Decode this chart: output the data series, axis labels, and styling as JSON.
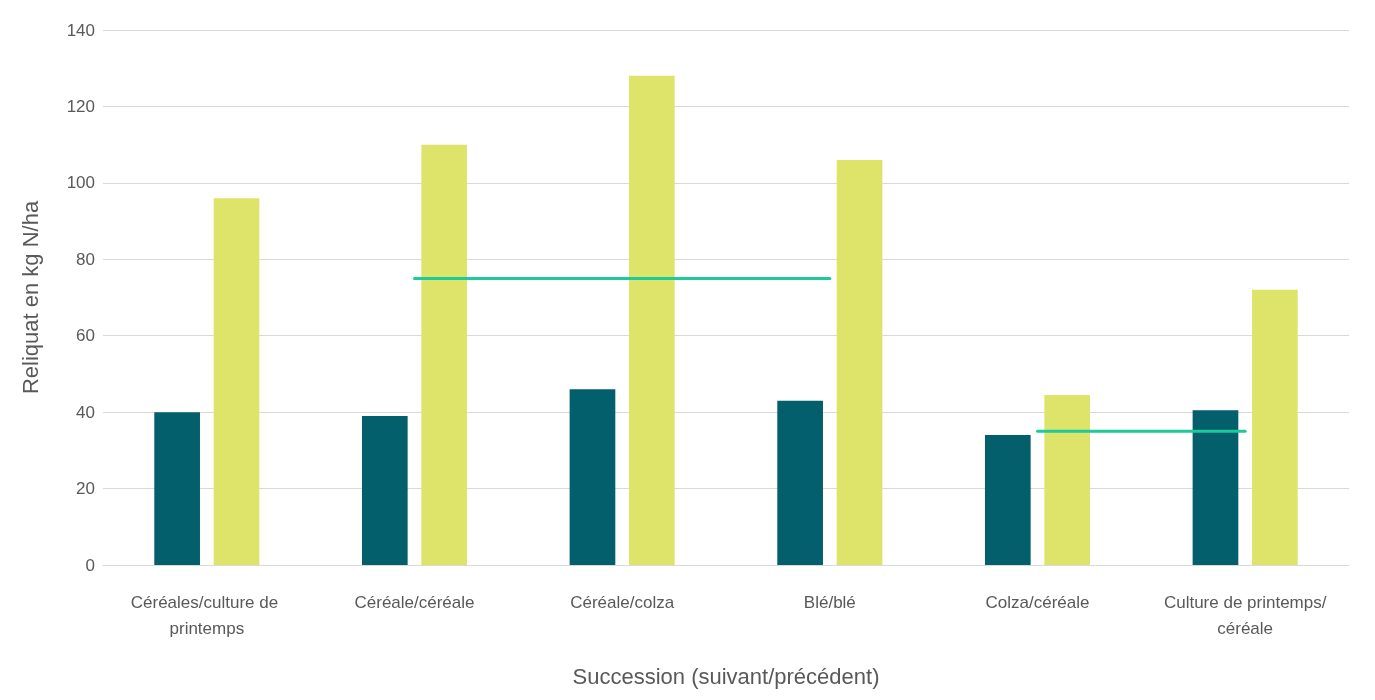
{
  "chart_data": {
    "type": "bar",
    "xlabel": "Succession (suivant/précédent)",
    "ylabel": "Reliquat en kg N/ha",
    "categories": [
      "Céréales/culture de printemps",
      "Céréale/céréale",
      "Céréale/colza",
      "Blé/blé",
      "Colza/céréale",
      "Culture de printemps/céréale"
    ],
    "series": [
      {
        "color": "#035f6b",
        "values": [
          40,
          39,
          46,
          43,
          34,
          40.5
        ]
      },
      {
        "color": "#dee46a",
        "values": [
          96,
          110,
          128,
          106,
          44.5,
          72
        ]
      },
      {
        "type": "line",
        "color": "#1ec99b",
        "values": [
          null,
          75,
          75,
          75,
          null,
          null
        ]
      },
      {
        "type": "line",
        "color": "#1ec99b",
        "values": [
          null,
          null,
          null,
          null,
          35,
          35
        ]
      }
    ],
    "ylim": [
      0,
      140
    ],
    "yticks": [
      0,
      20,
      40,
      60,
      80,
      100,
      120,
      140
    ],
    "grid": "y",
    "marker": "none"
  }
}
